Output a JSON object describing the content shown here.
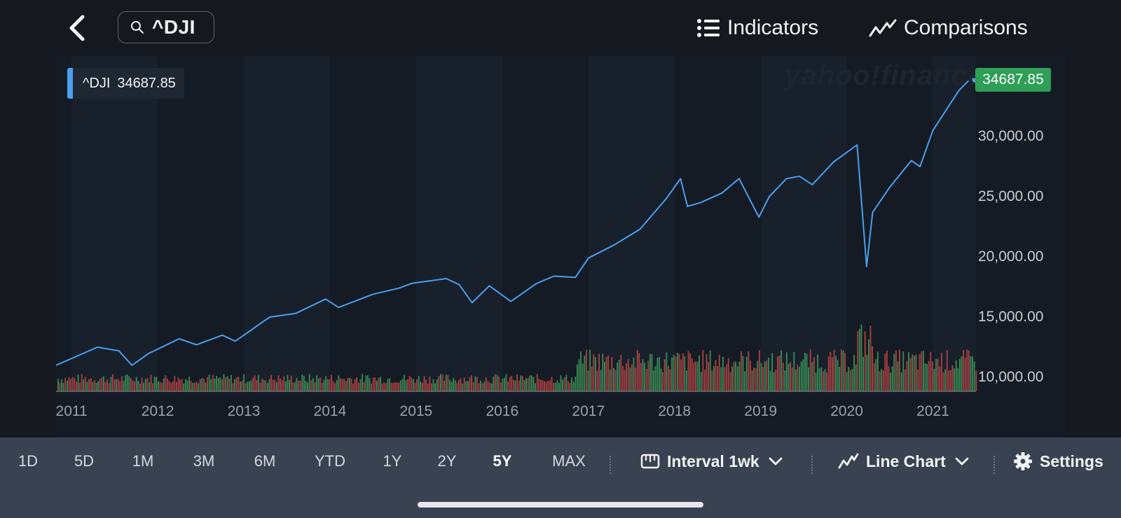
{
  "header": {
    "search_value": "^DJI",
    "indicators_label": "Indicators",
    "comparisons_label": "Comparisons"
  },
  "chart": {
    "ticker": "^DJI",
    "last_price": "34687.85",
    "watermark": "yahoo!finance"
  },
  "chart_data": {
    "type": "line",
    "x": [
      2010.82,
      2011.3,
      2011.55,
      2011.7,
      2011.9,
      2012.25,
      2012.45,
      2012.75,
      2012.9,
      2013.3,
      2013.6,
      2013.95,
      2014.1,
      2014.5,
      2014.8,
      2014.95,
      2015.35,
      2015.5,
      2015.65,
      2015.85,
      2016.1,
      2016.4,
      2016.6,
      2016.85,
      2017.0,
      2017.3,
      2017.6,
      2017.9,
      2018.07,
      2018.15,
      2018.3,
      2018.55,
      2018.75,
      2018.98,
      2019.1,
      2019.3,
      2019.45,
      2019.6,
      2019.85,
      2020.12,
      2020.23,
      2020.3,
      2020.5,
      2020.75,
      2020.85,
      2021.0,
      2021.3,
      2021.45,
      2021.5
    ],
    "y": [
      11000,
      12500,
      12200,
      11000,
      12000,
      13200,
      12700,
      13500,
      13000,
      15000,
      15300,
      16500,
      15800,
      16900,
      17400,
      17800,
      18200,
      17700,
      16200,
      17600,
      16300,
      17800,
      18400,
      18300,
      19900,
      21000,
      22300,
      24800,
      26500,
      24200,
      24500,
      25300,
      26500,
      23300,
      25000,
      26500,
      26700,
      26000,
      27900,
      29300,
      19200,
      23700,
      25800,
      28000,
      27500,
      30500,
      33800,
      34900,
      34687.85
    ],
    "volume_note": "",
    "ylim": [
      9000,
      36000
    ],
    "y_ticks": [
      "10,000.00",
      "15,000.00",
      "20,000.00",
      "25,000.00",
      "30,000.00"
    ],
    "x_ticks": [
      "2011",
      "2012",
      "2013",
      "2014",
      "2015",
      "2016",
      "2017",
      "2018",
      "2019",
      "2020",
      "2021"
    ],
    "last_value": 34687.85,
    "grid": false,
    "colors": {
      "line": "#4a9ff0",
      "volume_up": "#3fa15e",
      "volume_down": "#c94848",
      "price_tag": "#2f9e56"
    }
  },
  "footer": {
    "ranges": [
      "1D",
      "5D",
      "1M",
      "3M",
      "6M",
      "YTD",
      "1Y",
      "2Y",
      "5Y",
      "MAX"
    ],
    "active_range": "5Y",
    "interval_label": "Interval 1wk",
    "chart_type_label": "Line Chart",
    "settings_label": "Settings"
  }
}
